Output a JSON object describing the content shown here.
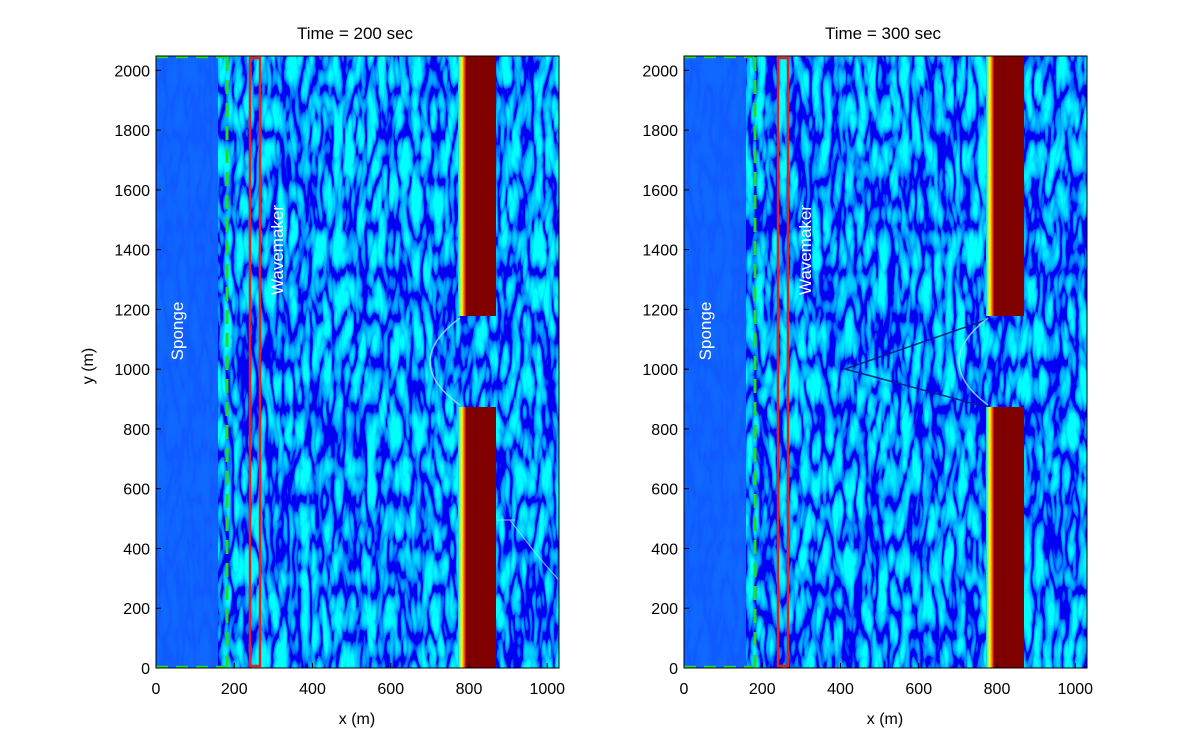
{
  "chart_data": [
    {
      "type": "heatmap",
      "title": "Time = 200 sec",
      "xlabel": "x (m)",
      "ylabel": "y (m)",
      "xlim": [
        0,
        1030
      ],
      "ylim": [
        0,
        2048
      ],
      "xticks": [
        "0",
        "200",
        "400",
        "600",
        "800",
        "1000"
      ],
      "yticks": [
        "0",
        "200",
        "400",
        "600",
        "800",
        "1000",
        "1200",
        "1400",
        "1600",
        "1800",
        "2000"
      ],
      "colormap": "jet",
      "annotations": [
        "Sponge",
        "Wavemaker"
      ],
      "sponge_boundary_x": 180,
      "wavemaker_x": [
        240,
        270
      ],
      "breakwater_x": [
        780,
        865
      ],
      "breakwater_gap_y": [
        875,
        1180
      ],
      "colors": {
        "sponge_line": "#22dd22",
        "wavemaker_box": "#dd2222",
        "breakwater": "#800000"
      }
    },
    {
      "type": "heatmap",
      "title": "Time = 300 sec",
      "xlabel": "x (m)",
      "ylabel": "",
      "xlim": [
        0,
        1030
      ],
      "ylim": [
        0,
        2048
      ],
      "xticks": [
        "0",
        "200",
        "400",
        "600",
        "800",
        "1000"
      ],
      "yticks": [
        "0",
        "200",
        "400",
        "600",
        "800",
        "1000",
        "1200",
        "1400",
        "1600",
        "1800",
        "2000"
      ],
      "colormap": "jet",
      "annotations": [
        "Sponge",
        "Wavemaker"
      ],
      "sponge_boundary_x": 180,
      "wavemaker_x": [
        240,
        270
      ],
      "breakwater_x": [
        780,
        865
      ],
      "breakwater_gap_y": [
        875,
        1180
      ],
      "colors": {
        "sponge_line": "#22dd22",
        "wavemaker_box": "#dd2222",
        "breakwater": "#800000"
      }
    }
  ]
}
